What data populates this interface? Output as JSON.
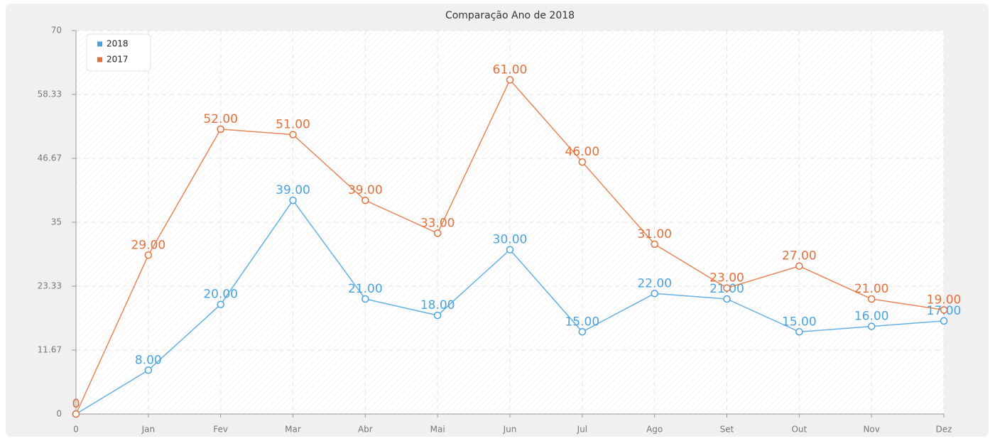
{
  "chart_data": {
    "type": "line",
    "title": "Comparação Ano de 2018",
    "categories": [
      "0",
      "Jan",
      "Fev",
      "Mar",
      "Abr",
      "Mai",
      "Jun",
      "Jul",
      "Ago",
      "Set",
      "Out",
      "Nov",
      "Dez"
    ],
    "series": [
      {
        "name": "2018",
        "color": "#4aa3df",
        "values": [
          0,
          8,
          20,
          39,
          21,
          18,
          30,
          15,
          22,
          21,
          15,
          16,
          17
        ],
        "value_labels": [
          "0",
          "8.00",
          "20.00",
          "39.00",
          "21.00",
          "18.00",
          "30.00",
          "15.00",
          "22.00",
          "21.00",
          "15.00",
          "16.00",
          "17.00"
        ]
      },
      {
        "name": "2017",
        "color": "#e4703c",
        "values": [
          0,
          29,
          52,
          51,
          39,
          33,
          61,
          46,
          31,
          23,
          27,
          21,
          19
        ],
        "value_labels": [
          "0",
          "29.00",
          "52.00",
          "51.00",
          "39.00",
          "33.00",
          "61.00",
          "46.00",
          "31.00",
          "23.00",
          "27.00",
          "21.00",
          "19.00"
        ]
      }
    ],
    "ylim": [
      0,
      70
    ],
    "yticks": [
      0,
      11.67,
      23.33,
      35,
      46.67,
      58.33,
      70
    ],
    "grid": true,
    "legend": "top-left"
  }
}
